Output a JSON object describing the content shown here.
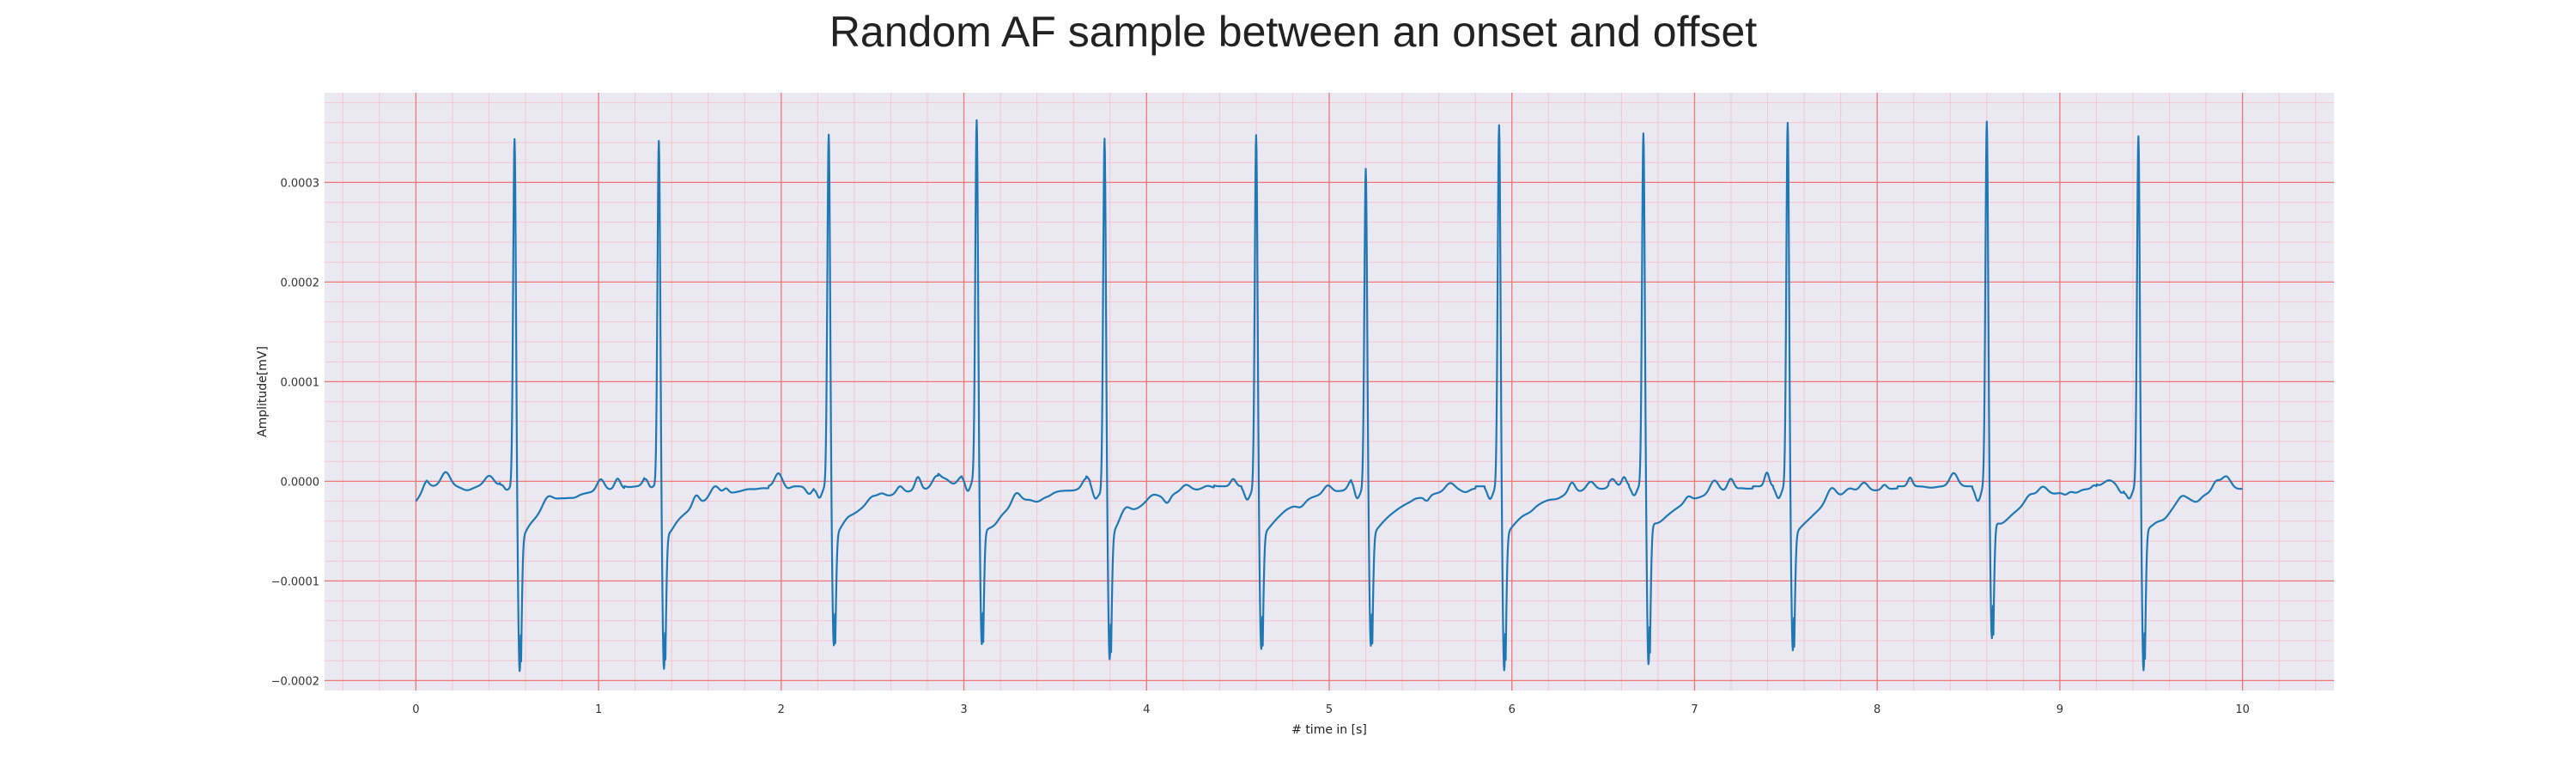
{
  "chart_data": {
    "type": "line",
    "title": "Random AF sample between an onset and offset",
    "xlabel": "# time in [s]",
    "ylabel": "Amplitude[mV]",
    "xlim": [
      -0.5,
      10.5
    ],
    "ylim": [
      -0.00021,
      0.00039
    ],
    "x_ticks": [
      0,
      1,
      2,
      3,
      4,
      5,
      6,
      7,
      8,
      9,
      10
    ],
    "x_tick_labels": [
      "0",
      "1",
      "2",
      "3",
      "4",
      "5",
      "6",
      "7",
      "8",
      "9",
      "10"
    ],
    "y_ticks": [
      -0.0002,
      -0.0001,
      0.0,
      0.0001,
      0.0002,
      0.0003
    ],
    "y_tick_labels": [
      "−0.0002",
      "−0.0001",
      "0.0000",
      "0.0001",
      "0.0002",
      "0.0003"
    ],
    "grid": true,
    "minor_grid": true,
    "legend": "none",
    "plot_background": "#eae9f2",
    "major_grid_color": "#f07575",
    "minor_grid_color": "#f4c6cf",
    "series": [
      {
        "color": "#1f77b4",
        "x_range": [
          0,
          10
        ],
        "baseline_start": -2e-05,
        "qrs_complexes": [
          {
            "t": 0.54,
            "r_peak": 0.00035,
            "s_trough": -0.000185
          },
          {
            "t": 1.33,
            "r_peak": 0.000348,
            "s_trough": -0.000183
          },
          {
            "t": 2.26,
            "r_peak": 0.000354,
            "s_trough": -0.00016
          },
          {
            "t": 3.07,
            "r_peak": 0.000359,
            "s_trough": -0.000165
          },
          {
            "t": 3.77,
            "r_peak": 0.000357,
            "s_trough": -0.000173
          },
          {
            "t": 4.6,
            "r_peak": 0.000356,
            "s_trough": -0.000163
          },
          {
            "t": 5.2,
            "r_peak": 0.000319,
            "s_trough": -0.000163
          },
          {
            "t": 5.93,
            "r_peak": 0.000364,
            "s_trough": -0.000185
          },
          {
            "t": 6.72,
            "r_peak": 0.000354,
            "s_trough": -0.000185
          },
          {
            "t": 7.51,
            "r_peak": 0.000366,
            "s_trough": -0.000165
          },
          {
            "t": 8.6,
            "r_peak": 0.000361,
            "s_trough": -0.000165
          },
          {
            "t": 9.43,
            "r_peak": 0.000352,
            "s_trough": -0.000188
          }
        ]
      }
    ]
  }
}
